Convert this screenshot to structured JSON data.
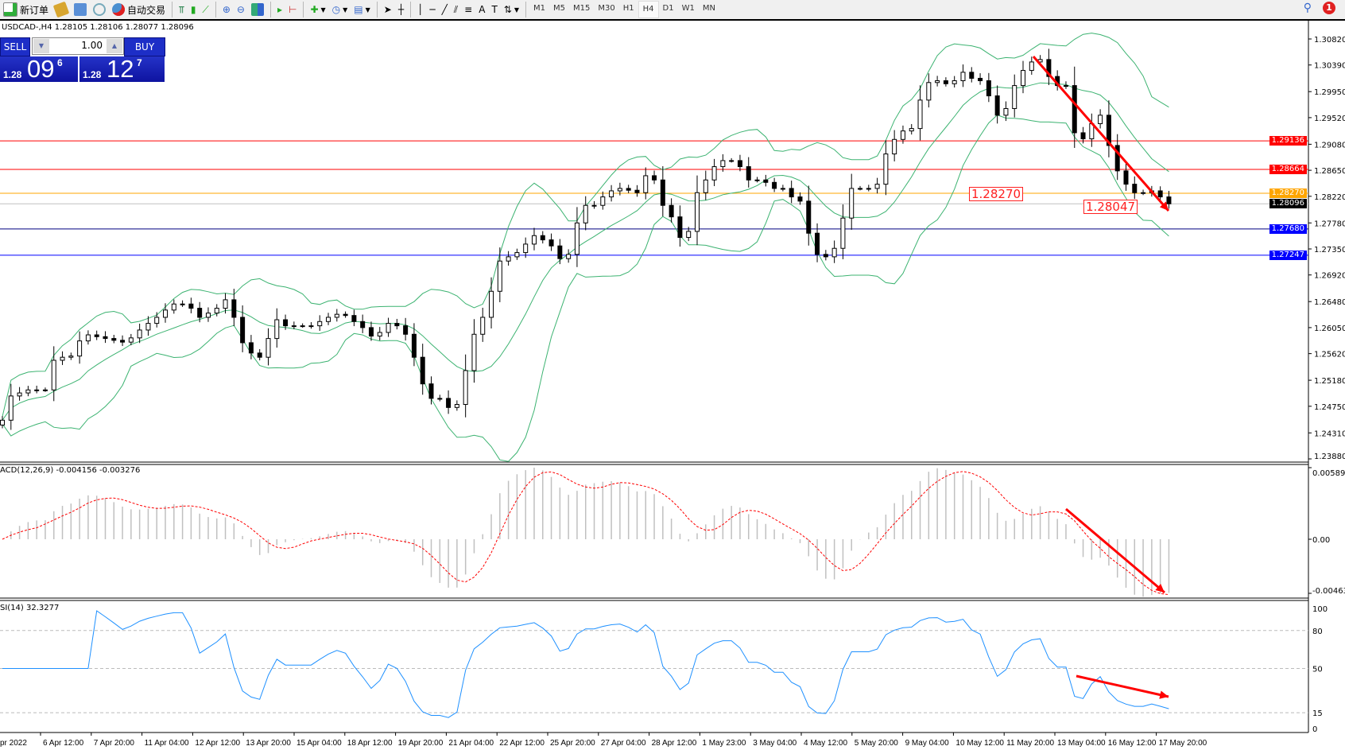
{
  "toolbar": {
    "new_order": "新订单",
    "auto_trading": "自动交易",
    "timeframes": [
      "M1",
      "M5",
      "M15",
      "M30",
      "H1",
      "H4",
      "D1",
      "W1",
      "MN"
    ],
    "active_timeframe": "H4",
    "notification_count": "1"
  },
  "chart": {
    "title": "USDCAD-,H4  1.28105 1.28106 1.28077 1.28096",
    "symbol": "USDCAD-",
    "period": "H4"
  },
  "one_click": {
    "sell_label": "SELL",
    "buy_label": "BUY",
    "lot": "1.00",
    "sell_price": {
      "prefix": "1.28",
      "big": "09",
      "sup": "6"
    },
    "buy_price": {
      "prefix": "1.28",
      "big": "12",
      "sup": "7"
    }
  },
  "price_axis": {
    "labels": [
      "1.30820",
      "1.30390",
      "1.29950",
      "1.29520",
      "1.29080",
      "1.28650",
      "1.28220",
      "1.27780",
      "1.27350",
      "1.26920",
      "1.26480",
      "1.26050",
      "1.25620",
      "1.25180",
      "1.24750",
      "1.24310",
      "1.23880"
    ],
    "range": [
      1.2388,
      1.3082
    ]
  },
  "levels": [
    {
      "price": "1.29136",
      "color": "#ff0000"
    },
    {
      "price": "1.28664",
      "color": "#ff0000"
    },
    {
      "price": "1.28270",
      "color": "#ffa500"
    },
    {
      "price": "1.28096",
      "color": "#000000",
      "line": "#c0c0c0"
    },
    {
      "price": "1.27680",
      "color": "#0000ff",
      "line": "#000080"
    },
    {
      "price": "1.27247",
      "color": "#0000ff"
    }
  ],
  "callouts": [
    "1.28270",
    "1.28047"
  ],
  "closes": [
    1.2452,
    1.2492,
    1.2497,
    1.2502,
    1.2502,
    1.2502,
    1.2551,
    1.2556,
    1.2558,
    1.2583,
    1.2593,
    1.259,
    1.2587,
    1.2584,
    1.2581,
    1.2588,
    1.2601,
    1.2612,
    1.2622,
    1.2634,
    1.2644,
    1.2644,
    1.2637,
    1.2622,
    1.2629,
    1.2637,
    1.2651,
    1.2622,
    1.258,
    1.2563,
    1.2556,
    1.2587,
    1.2618,
    1.2608,
    1.2608,
    1.2608,
    1.2608,
    1.2615,
    1.2622,
    1.2627,
    1.2625,
    1.2615,
    1.2605,
    1.2591,
    1.2597,
    1.2612,
    1.2608,
    1.2594,
    1.2556,
    1.2512,
    1.2488,
    1.2488,
    1.2473,
    1.2478,
    1.2534,
    1.2594,
    1.2622,
    1.2665,
    1.2715,
    1.2722,
    1.2729,
    1.2743,
    1.2757,
    1.275,
    1.274,
    1.2719,
    1.2726,
    1.2778,
    1.2807,
    1.2807,
    1.2821,
    1.2831,
    1.2835,
    1.2832,
    1.2828,
    1.2856,
    1.2849,
    1.2807,
    1.2788,
    1.2754,
    1.2764,
    1.2828,
    1.2849,
    1.2871,
    1.2881,
    1.2881,
    1.2871,
    1.2849,
    1.2849,
    1.2845,
    1.2835,
    1.2835,
    1.2821,
    1.2814,
    1.2761,
    1.2726,
    1.2722,
    1.2736,
    1.2786,
    1.2835,
    1.2835,
    1.2835,
    1.2842,
    1.2892,
    1.2916,
    1.293,
    1.2934,
    1.2981,
    1.301,
    1.3013,
    1.3008,
    1.3013,
    1.3027,
    1.3017,
    1.3013,
    1.2988,
    1.2956,
    1.2967,
    1.3005,
    1.303,
    1.3044,
    1.3048,
    1.302,
    1.3005,
    1.3005,
    1.2927,
    1.2917,
    1.2942,
    1.2956,
    1.2906,
    1.2864,
    1.2842,
    1.2828,
    1.2828,
    1.2831,
    1.2821,
    1.28096
  ],
  "macd": {
    "label": "ACD(12,26,9) -0.004156 -0.003276",
    "axis": [
      "0.005897",
      "0.00",
      "-0.004634"
    ],
    "range": [
      -0.004634,
      0.005897
    ]
  },
  "rsi": {
    "label": "SI(14) 32.3277",
    "axis": [
      "100",
      "80",
      "50",
      "15",
      "0"
    ],
    "levels": [
      80,
      50,
      15
    ]
  },
  "date_axis": [
    "pr 2022",
    "6 Apr 12:00",
    "7 Apr 20:00",
    "11 Apr 04:00",
    "12 Apr 12:00",
    "13 Apr 20:00",
    "15 Apr 04:00",
    "18 Apr 12:00",
    "19 Apr 20:00",
    "21 Apr 04:00",
    "22 Apr 12:00",
    "25 Apr 20:00",
    "27 Apr 04:00",
    "28 Apr 12:00",
    "1 May 23:00",
    "3 May 04:00",
    "4 May 12:00",
    "5 May 20:00",
    "9 May 04:00",
    "10 May 12:00",
    "11 May 20:00",
    "13 May 04:00",
    "16 May 12:00",
    "17 May 20:00"
  ],
  "colors": {
    "bollinger": "#3cb371",
    "macd_hist": "#c0c0c0",
    "macd_signal": "#ff0000",
    "rsi_line": "#1e90ff",
    "arrow": "#ff0000",
    "panel_blue": "#1d2ec7"
  }
}
